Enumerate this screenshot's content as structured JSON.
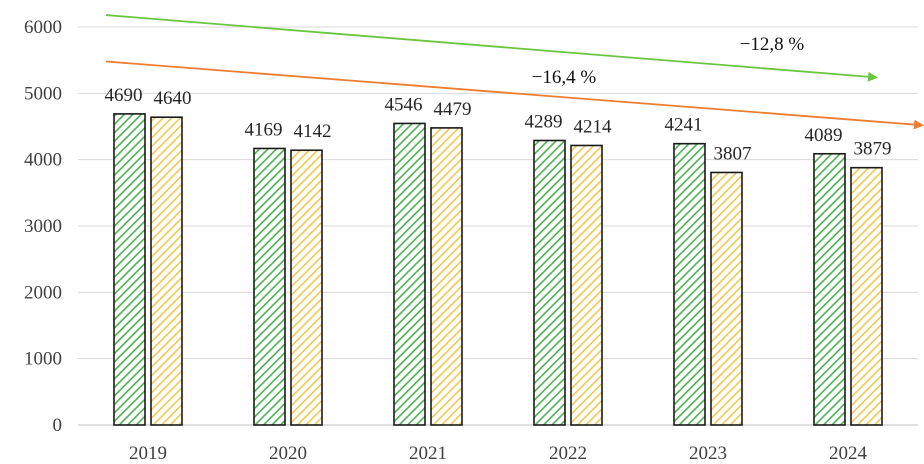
{
  "chart_data": {
    "type": "bar",
    "categories": [
      "2019",
      "2020",
      "2021",
      "2022",
      "2023",
      "2024"
    ],
    "series": [
      {
        "values": [
          4690,
          4169,
          4546,
          4289,
          4241,
          4089
        ],
        "color": "#4caf50",
        "pattern": "diagonal-hatch-green"
      },
      {
        "values": [
          4640,
          4142,
          4479,
          4214,
          3807,
          3879
        ],
        "color": "#f2c94c",
        "pattern": "diagonal-hatch-yellow"
      }
    ],
    "ylim": [
      0,
      6000
    ],
    "yticks": [
      "0",
      "1000",
      "2000",
      "3000",
      "4000",
      "5000",
      "6000"
    ],
    "grid": true,
    "title": "",
    "xlabel": "",
    "ylabel": "",
    "trends": [
      {
        "label": "−12,8 %",
        "color": "#6ac641",
        "from": [
          "2019",
          6180
        ],
        "to": [
          "2024",
          5240
        ]
      },
      {
        "label": "−16,4 %",
        "color": "#ed7d31",
        "from": [
          "2019",
          5480
        ],
        "to": [
          "2024",
          4520
        ]
      }
    ]
  }
}
